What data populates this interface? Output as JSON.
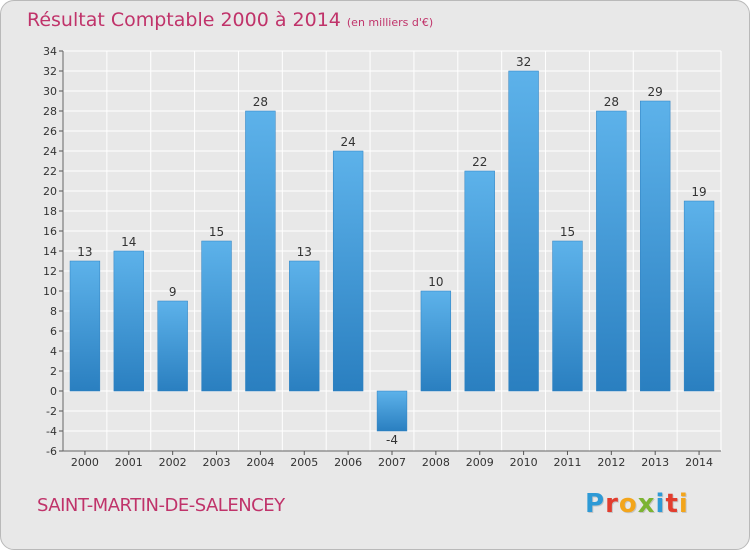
{
  "title": "Résultat Comptable 2000 à 2014",
  "subtitle": "(en milliers d'€)",
  "commune": "SAINT-MARTIN-DE-SALENCEY",
  "logo": {
    "letters": [
      "P",
      "r",
      "o",
      "x",
      "i",
      "t",
      "i"
    ],
    "colors": [
      "#2e9ad6",
      "#e23d2e",
      "#f3a51b",
      "#7cb432",
      "#2e9ad6",
      "#e23d2e",
      "#f3a51b"
    ]
  },
  "chart_data": {
    "type": "bar",
    "categories": [
      "2000",
      "2001",
      "2002",
      "2003",
      "2004",
      "2005",
      "2006",
      "2007",
      "2008",
      "2009",
      "2010",
      "2011",
      "2012",
      "2013",
      "2014"
    ],
    "values": [
      13,
      14,
      9,
      15,
      28,
      13,
      24,
      -4,
      10,
      22,
      32,
      15,
      28,
      29,
      19
    ],
    "ylim": [
      -6,
      34
    ],
    "yticks": [
      -6,
      -4,
      -2,
      0,
      2,
      4,
      6,
      8,
      10,
      12,
      14,
      16,
      18,
      20,
      22,
      24,
      26,
      28,
      30,
      32,
      34
    ],
    "grid": true,
    "bar_color": "#3d97da"
  }
}
